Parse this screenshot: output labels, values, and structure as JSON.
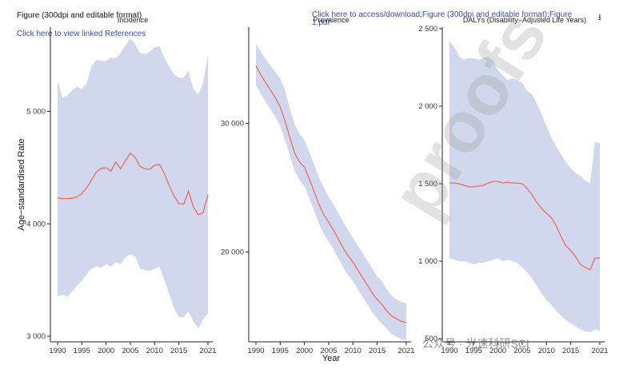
{
  "header": {
    "figure_title": "Figure (300dpi and editable format)",
    "references_link": "Click here to view linked References",
    "download_link": "Click here to access/download;Figure (300dpi and editable format);Figure 1.pdf",
    "download_icon": "download-icon"
  },
  "watermark": {
    "text": "proofs",
    "sub_text": "公众号 · 光速科研SCI"
  },
  "colors": {
    "line": "#ee6b5e",
    "band": "#d1d8ee",
    "axis": "#222222"
  },
  "chart_data": [
    {
      "type": "line",
      "title": "Incidence",
      "ylabel": "Age−standardised Rate",
      "xlabel": "",
      "xlim": [
        1990,
        2021
      ],
      "ylim": [
        2950,
        5750
      ],
      "x_ticks": [
        1990,
        1995,
        2000,
        2005,
        2010,
        2015,
        2021
      ],
      "y_ticks": [
        3000,
        4000,
        5000
      ],
      "y_tick_labels": [
        "3 000",
        "4 000",
        "5 000"
      ],
      "x": [
        1990,
        1991,
        1992,
        1993,
        1994,
        1995,
        1996,
        1997,
        1998,
        1999,
        2000,
        2001,
        2002,
        2003,
        2004,
        2005,
        2006,
        2007,
        2008,
        2009,
        2010,
        2011,
        2012,
        2013,
        2014,
        2015,
        2016,
        2017,
        2018,
        2019,
        2020,
        2021
      ],
      "values": [
        4230,
        4225,
        4225,
        4228,
        4240,
        4270,
        4320,
        4390,
        4460,
        4495,
        4500,
        4470,
        4550,
        4490,
        4560,
        4630,
        4590,
        4510,
        4490,
        4485,
        4520,
        4530,
        4450,
        4340,
        4250,
        4180,
        4175,
        4290,
        4150,
        4080,
        4100,
        4260
      ],
      "lower": [
        3350,
        3370,
        3350,
        3400,
        3450,
        3490,
        3550,
        3600,
        3620,
        3610,
        3640,
        3620,
        3660,
        3640,
        3700,
        3730,
        3710,
        3600,
        3590,
        3580,
        3600,
        3620,
        3500,
        3380,
        3250,
        3170,
        3170,
        3220,
        3130,
        3070,
        3150,
        3200
      ],
      "upper": [
        5270,
        5120,
        5140,
        5190,
        5220,
        5200,
        5250,
        5400,
        5460,
        5450,
        5450,
        5480,
        5470,
        5520,
        5590,
        5650,
        5600,
        5520,
        5510,
        5530,
        5570,
        5580,
        5480,
        5400,
        5330,
        5300,
        5300,
        5360,
        5200,
        5150,
        5250,
        5500
      ]
    },
    {
      "type": "line",
      "title": "Prevalence",
      "ylabel": "",
      "xlabel": "Year",
      "xlim": [
        1990,
        2021
      ],
      "ylim": [
        13000,
        37500
      ],
      "x_ticks": [
        1990,
        1995,
        2000,
        2005,
        2010,
        2015,
        2021
      ],
      "y_ticks": [
        20000,
        30000
      ],
      "y_tick_labels": [
        "20 000",
        "30 000"
      ],
      "x": [
        1990,
        1991,
        1992,
        1993,
        1994,
        1995,
        1996,
        1997,
        1998,
        1999,
        2000,
        2001,
        2002,
        2003,
        2004,
        2005,
        2006,
        2007,
        2008,
        2009,
        2010,
        2011,
        2012,
        2013,
        2014,
        2015,
        2016,
        2017,
        2018,
        2019,
        2020,
        2021
      ],
      "values": [
        34500,
        33800,
        33200,
        32600,
        32000,
        31300,
        30200,
        28900,
        27700,
        27000,
        26600,
        25700,
        24700,
        23700,
        22900,
        22300,
        21700,
        21000,
        20300,
        19700,
        19200,
        18600,
        18000,
        17400,
        16800,
        16300,
        15900,
        15400,
        15000,
        14800,
        14600,
        14500
      ],
      "lower": [
        33000,
        32300,
        31700,
        31100,
        30500,
        29800,
        28700,
        27500,
        26300,
        25600,
        25100,
        24200,
        23200,
        22200,
        21400,
        20800,
        20200,
        19500,
        18800,
        18200,
        17700,
        17100,
        16500,
        15900,
        15300,
        14800,
        14400,
        14000,
        13600,
        13400,
        13200,
        13100
      ],
      "upper": [
        36200,
        35600,
        35000,
        34500,
        34000,
        33500,
        32600,
        31100,
        29900,
        29200,
        28700,
        27800,
        26800,
        25800,
        25000,
        24300,
        23700,
        23000,
        22300,
        21700,
        21100,
        20500,
        19900,
        19300,
        18700,
        18100,
        17700,
        17100,
        16600,
        16300,
        16100,
        16000
      ]
    },
    {
      "type": "line",
      "title": "DALYs (Disability−Adjusted Life Years)",
      "ylabel": "",
      "xlabel": "",
      "xlim": [
        1990,
        2021
      ],
      "ylim": [
        480,
        2510
      ],
      "x_ticks": [
        1990,
        1995,
        2000,
        2005,
        2010,
        2015,
        2021
      ],
      "y_ticks": [
        500,
        1000,
        1500,
        2000,
        2500
      ],
      "y_tick_labels": [
        "500",
        "1 000",
        "1 500",
        "2 000",
        "2 500"
      ],
      "x": [
        1990,
        1991,
        1992,
        1993,
        1994,
        1995,
        1996,
        1997,
        1998,
        1999,
        2000,
        2001,
        2002,
        2003,
        2004,
        2005,
        2006,
        2007,
        2008,
        2009,
        2010,
        2011,
        2012,
        2013,
        2014,
        2015,
        2016,
        2017,
        2018,
        2019,
        2020,
        2021
      ],
      "values": [
        1505,
        1505,
        1500,
        1490,
        1480,
        1480,
        1485,
        1490,
        1505,
        1515,
        1515,
        1505,
        1510,
        1505,
        1505,
        1500,
        1470,
        1430,
        1380,
        1340,
        1310,
        1280,
        1230,
        1160,
        1100,
        1070,
        1030,
        980,
        960,
        945,
        1020,
        1020
      ],
      "lower": [
        1020,
        1010,
        1000,
        1000,
        990,
        980,
        990,
        990,
        1000,
        1010,
        1020,
        1000,
        1010,
        1000,
        990,
        960,
        930,
        890,
        840,
        790,
        750,
        720,
        680,
        650,
        620,
        600,
        580,
        560,
        550,
        540,
        560,
        550
      ],
      "upper": [
        2420,
        2380,
        2320,
        2300,
        2310,
        2310,
        2300,
        2310,
        2320,
        2290,
        2230,
        2200,
        2170,
        2180,
        2170,
        2150,
        2100,
        2080,
        2020,
        1950,
        1870,
        1800,
        1740,
        1690,
        1640,
        1600,
        1570,
        1550,
        1520,
        1500,
        1770,
        1760
      ]
    }
  ]
}
